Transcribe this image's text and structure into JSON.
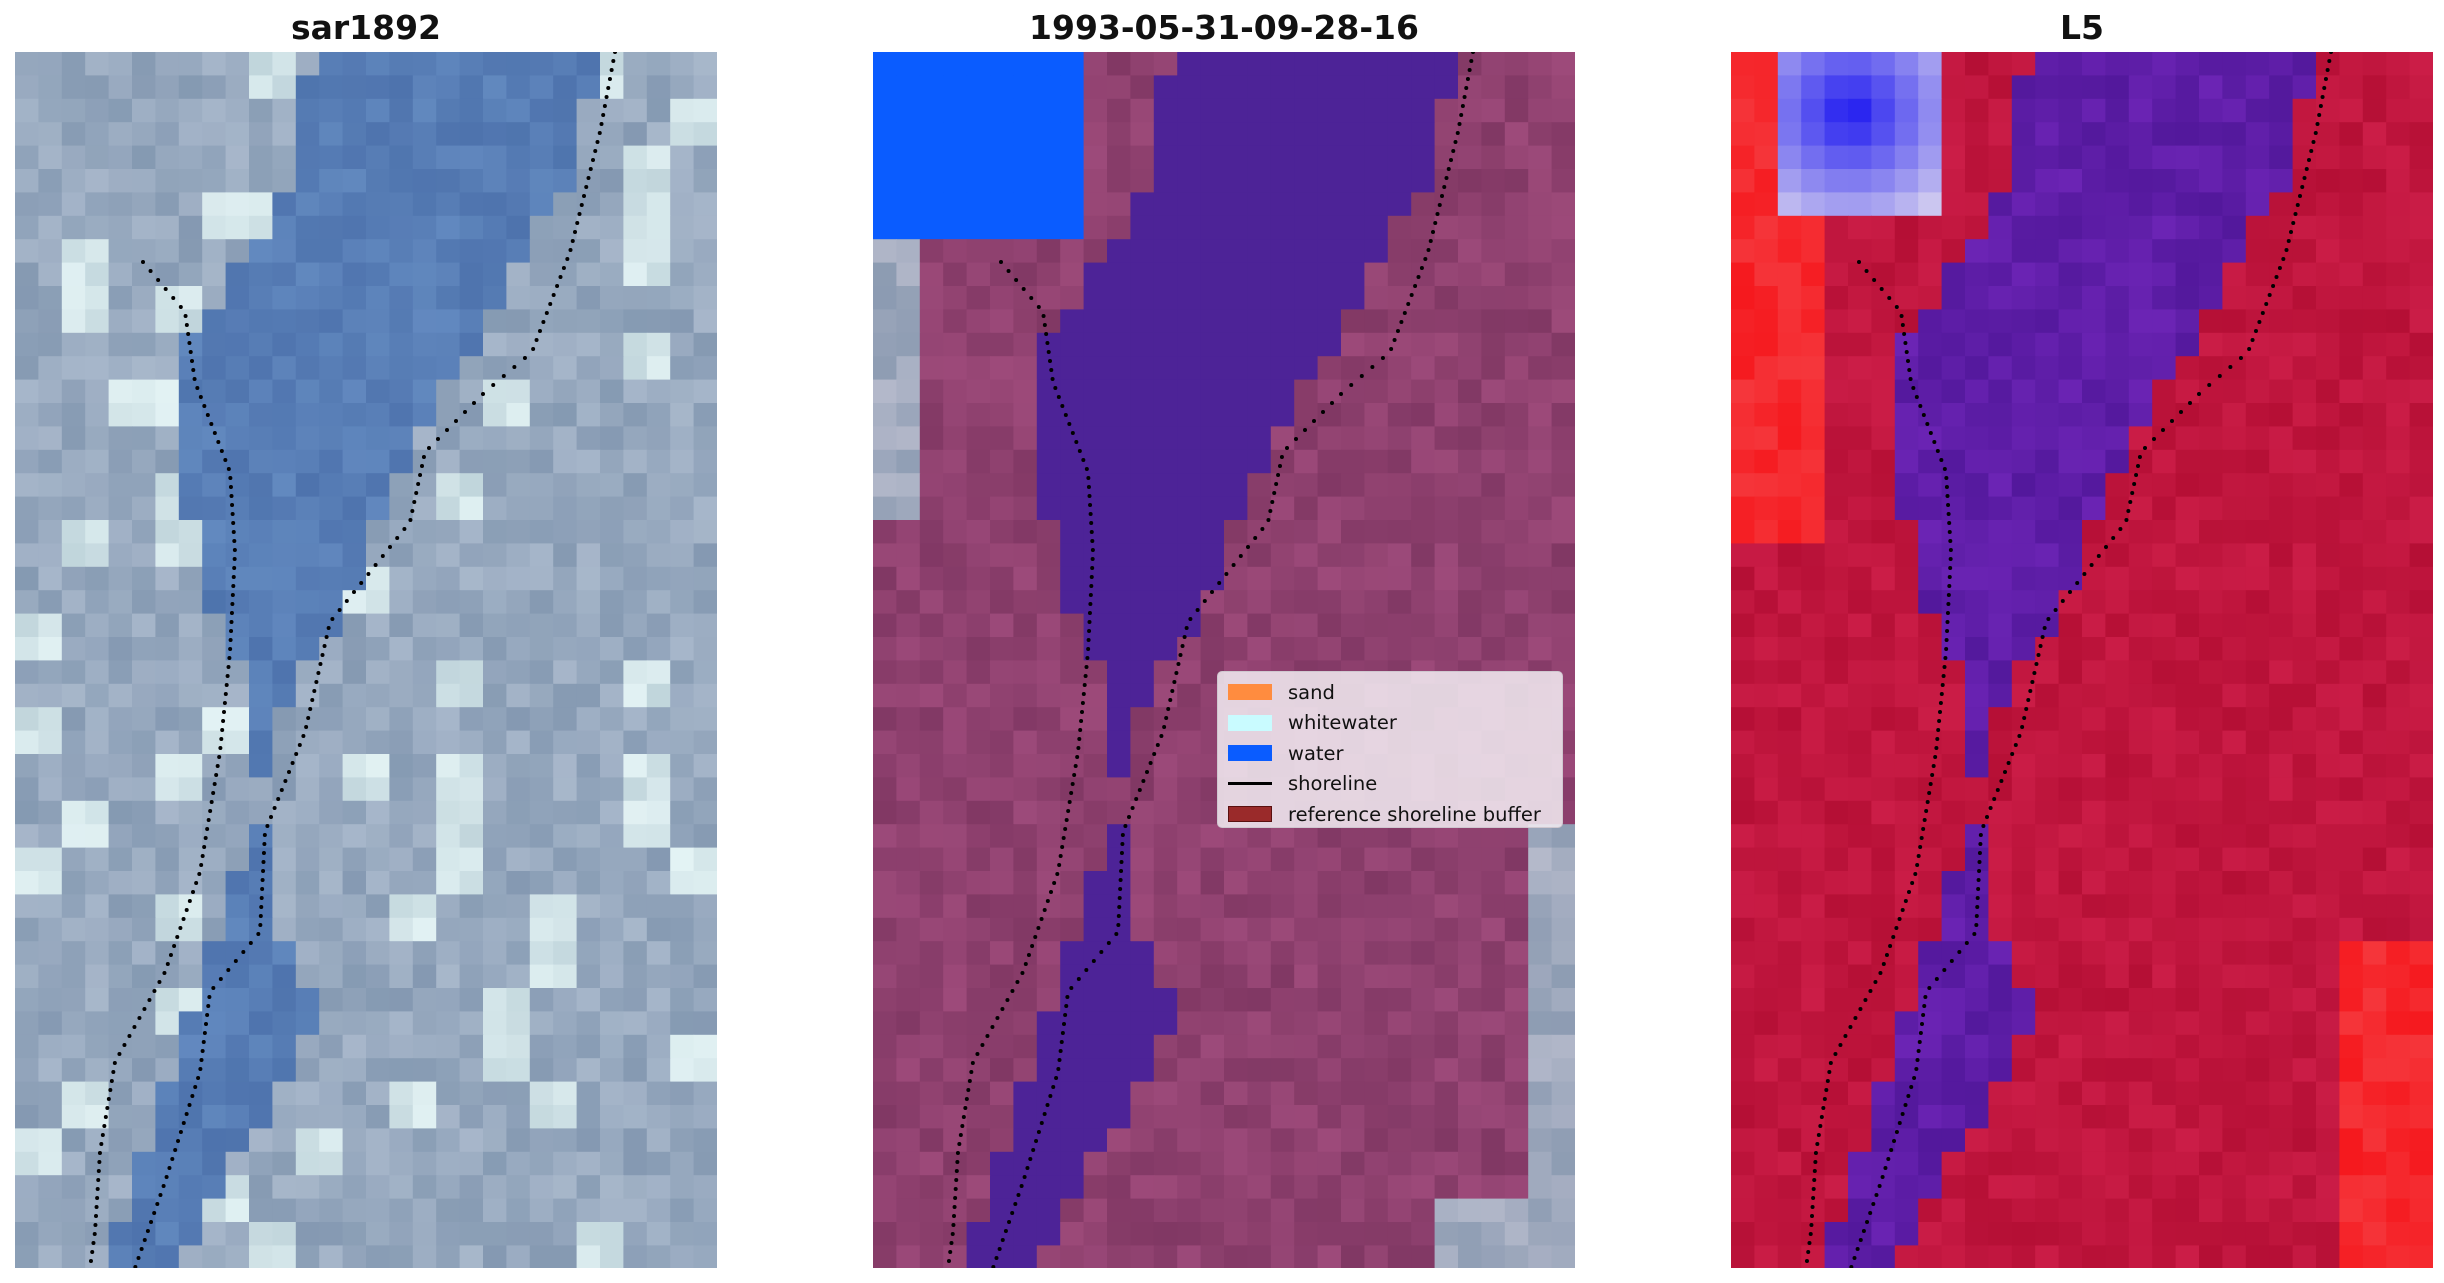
{
  "figure": {
    "panels": [
      {
        "title": "sar1892",
        "variant": "rgb"
      },
      {
        "title": "1993-05-31-09-28-16",
        "variant": "classified"
      },
      {
        "title": "L5",
        "variant": "index"
      }
    ]
  },
  "legend": {
    "items": [
      {
        "label": "sand",
        "color": "#ff8c3f",
        "kind": "patch"
      },
      {
        "label": "whitewater",
        "color": "#c9fbff",
        "kind": "patch"
      },
      {
        "label": "water",
        "color": "#0a5cff",
        "kind": "patch"
      },
      {
        "label": "shoreline",
        "color": "#000000",
        "kind": "line"
      },
      {
        "label": "reference shoreline buffer",
        "color": "#9a2a2a",
        "kind": "patch"
      }
    ]
  },
  "colors": {
    "shoreline": "#000000",
    "rgb_water": "#5a7fb7",
    "rgb_land": "#9fb0c4",
    "classified_water": "#4d2397",
    "classified_land": "#8f416f",
    "index_water": "#5b1fa6",
    "index_land": "#c0143d",
    "index_whitewater_blue": "#1a16f0"
  }
}
